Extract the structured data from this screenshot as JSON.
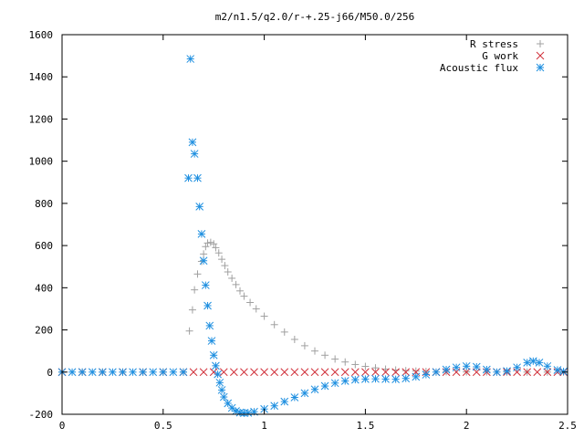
{
  "chart_data": {
    "type": "scatter",
    "title": "m2/n1.5/q2.0/r-+.25-j66/M50.0/256",
    "xlabel": "",
    "ylabel": "",
    "xlim": [
      0,
      2.5
    ],
    "ylim": [
      -200,
      1600
    ],
    "xticks": [
      "0",
      "0.5",
      "1",
      "1.5",
      "2",
      "2.5"
    ],
    "yticks": [
      "-200",
      "0",
      "200",
      "400",
      "600",
      "800",
      "1000",
      "1200",
      "1400",
      "1600"
    ],
    "grid": false,
    "legend_position": "top-right",
    "series": [
      {
        "name": "R stress",
        "marker": "plus",
        "color": "#a0a0a0",
        "points": [
          [
            0.0,
            0
          ],
          [
            0.1,
            0
          ],
          [
            0.2,
            0
          ],
          [
            0.3,
            0
          ],
          [
            0.4,
            0
          ],
          [
            0.5,
            0
          ],
          [
            0.6,
            0
          ],
          [
            0.63,
            195
          ],
          [
            0.645,
            295
          ],
          [
            0.655,
            390
          ],
          [
            0.67,
            465
          ],
          [
            0.69,
            525
          ],
          [
            0.7,
            560
          ],
          [
            0.71,
            595
          ],
          [
            0.72,
            612
          ],
          [
            0.735,
            615
          ],
          [
            0.75,
            608
          ],
          [
            0.76,
            590
          ],
          [
            0.775,
            565
          ],
          [
            0.79,
            535
          ],
          [
            0.805,
            505
          ],
          [
            0.82,
            475
          ],
          [
            0.84,
            445
          ],
          [
            0.86,
            415
          ],
          [
            0.88,
            385
          ],
          [
            0.9,
            360
          ],
          [
            0.93,
            330
          ],
          [
            0.96,
            300
          ],
          [
            1.0,
            265
          ],
          [
            1.05,
            225
          ],
          [
            1.1,
            190
          ],
          [
            1.15,
            155
          ],
          [
            1.2,
            125
          ],
          [
            1.25,
            100
          ],
          [
            1.3,
            80
          ],
          [
            1.35,
            62
          ],
          [
            1.4,
            48
          ],
          [
            1.45,
            36
          ],
          [
            1.5,
            27
          ],
          [
            1.55,
            20
          ],
          [
            1.6,
            14
          ],
          [
            1.65,
            10
          ],
          [
            1.7,
            7
          ],
          [
            1.75,
            5
          ],
          [
            1.8,
            3
          ],
          [
            1.9,
            2
          ],
          [
            2.0,
            1
          ],
          [
            2.1,
            1
          ],
          [
            2.2,
            0
          ],
          [
            2.3,
            0
          ],
          [
            2.4,
            0
          ],
          [
            2.48,
            0
          ]
        ]
      },
      {
        "name": "G work",
        "marker": "cross",
        "color": "#d0303a",
        "points": [
          [
            0.0,
            0
          ],
          [
            0.1,
            0
          ],
          [
            0.2,
            0
          ],
          [
            0.3,
            0
          ],
          [
            0.4,
            0
          ],
          [
            0.5,
            0
          ],
          [
            0.6,
            0
          ],
          [
            0.65,
            0
          ],
          [
            0.7,
            0
          ],
          [
            0.75,
            0
          ],
          [
            0.8,
            0
          ],
          [
            0.85,
            0
          ],
          [
            0.9,
            0
          ],
          [
            0.95,
            0
          ],
          [
            1.0,
            0
          ],
          [
            1.05,
            0
          ],
          [
            1.1,
            0
          ],
          [
            1.15,
            0
          ],
          [
            1.2,
            0
          ],
          [
            1.25,
            0
          ],
          [
            1.3,
            0
          ],
          [
            1.35,
            0
          ],
          [
            1.4,
            0
          ],
          [
            1.45,
            0
          ],
          [
            1.5,
            0
          ],
          [
            1.55,
            0
          ],
          [
            1.6,
            0
          ],
          [
            1.65,
            0
          ],
          [
            1.7,
            0
          ],
          [
            1.75,
            0
          ],
          [
            1.8,
            0
          ],
          [
            1.85,
            0
          ],
          [
            1.9,
            0
          ],
          [
            1.95,
            0
          ],
          [
            2.0,
            0
          ],
          [
            2.05,
            0
          ],
          [
            2.1,
            0
          ],
          [
            2.15,
            0
          ],
          [
            2.2,
            0
          ],
          [
            2.25,
            0
          ],
          [
            2.3,
            0
          ],
          [
            2.35,
            0
          ],
          [
            2.4,
            0
          ],
          [
            2.45,
            0
          ],
          [
            2.48,
            0
          ]
        ]
      },
      {
        "name": "Acoustic flux",
        "marker": "star",
        "color": "#1e8fe0",
        "points": [
          [
            0.0,
            0
          ],
          [
            0.05,
            0
          ],
          [
            0.1,
            0
          ],
          [
            0.15,
            0
          ],
          [
            0.2,
            0
          ],
          [
            0.25,
            0
          ],
          [
            0.3,
            0
          ],
          [
            0.35,
            0
          ],
          [
            0.4,
            0
          ],
          [
            0.45,
            0
          ],
          [
            0.5,
            0
          ],
          [
            0.55,
            0
          ],
          [
            0.6,
            0
          ],
          [
            0.625,
            920
          ],
          [
            0.635,
            1485
          ],
          [
            0.645,
            1090
          ],
          [
            0.655,
            1035
          ],
          [
            0.67,
            920
          ],
          [
            0.68,
            785
          ],
          [
            0.69,
            655
          ],
          [
            0.7,
            528
          ],
          [
            0.71,
            412
          ],
          [
            0.72,
            315
          ],
          [
            0.73,
            220
          ],
          [
            0.74,
            148
          ],
          [
            0.75,
            80
          ],
          [
            0.76,
            30
          ],
          [
            0.77,
            -10
          ],
          [
            0.78,
            -50
          ],
          [
            0.79,
            -85
          ],
          [
            0.8,
            -118
          ],
          [
            0.82,
            -148
          ],
          [
            0.84,
            -170
          ],
          [
            0.86,
            -185
          ],
          [
            0.88,
            -192
          ],
          [
            0.9,
            -194
          ],
          [
            0.92,
            -193
          ],
          [
            0.95,
            -188
          ],
          [
            1.0,
            -175
          ],
          [
            1.05,
            -160
          ],
          [
            1.1,
            -140
          ],
          [
            1.15,
            -120
          ],
          [
            1.2,
            -100
          ],
          [
            1.25,
            -82
          ],
          [
            1.3,
            -66
          ],
          [
            1.35,
            -52
          ],
          [
            1.4,
            -42
          ],
          [
            1.45,
            -36
          ],
          [
            1.5,
            -33
          ],
          [
            1.55,
            -32
          ],
          [
            1.6,
            -33
          ],
          [
            1.65,
            -34
          ],
          [
            1.7,
            -30
          ],
          [
            1.75,
            -22
          ],
          [
            1.8,
            -12
          ],
          [
            1.85,
            0
          ],
          [
            1.9,
            12
          ],
          [
            1.95,
            22
          ],
          [
            2.0,
            28
          ],
          [
            2.05,
            25
          ],
          [
            2.1,
            12
          ],
          [
            2.15,
            0
          ],
          [
            2.2,
            5
          ],
          [
            2.25,
            22
          ],
          [
            2.3,
            45
          ],
          [
            2.33,
            52
          ],
          [
            2.36,
            45
          ],
          [
            2.4,
            28
          ],
          [
            2.45,
            10
          ],
          [
            2.48,
            3
          ]
        ]
      }
    ]
  }
}
